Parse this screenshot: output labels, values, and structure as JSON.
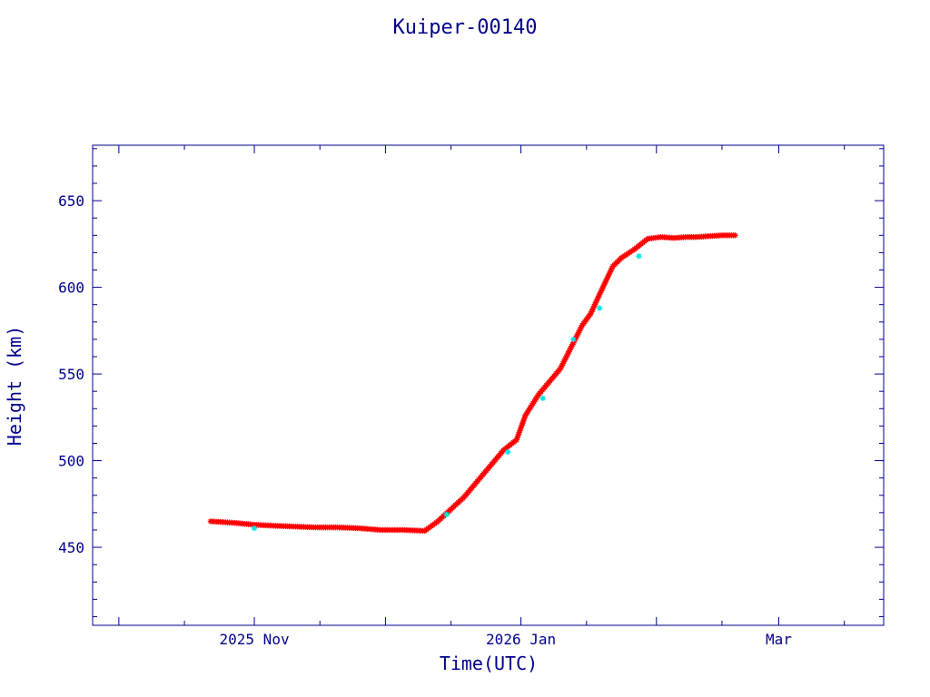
{
  "chart_data": {
    "type": "scatter",
    "title": "Kuiper-00140",
    "xlabel": "Time(UTC)",
    "ylabel": "Height (km)",
    "xlim": [
      "2025-09-25",
      "2026-03-25"
    ],
    "ylim": [
      405,
      682
    ],
    "x_ticks": [
      {
        "date": "2025-11-01",
        "label": "2025 Nov"
      },
      {
        "date": "2026-01-01",
        "label": "2026 Jan"
      },
      {
        "date": "2026-03-01",
        "label": "Mar"
      }
    ],
    "y_ticks": [
      450,
      500,
      550,
      600,
      650
    ],
    "grid": false,
    "colors": {
      "axes": "#00008b",
      "text": "#00008b",
      "primary_marker": "#ff0000",
      "secondary_marker": "#00e5e5"
    },
    "series": [
      {
        "marker": "asterisk",
        "color": "#ff0000",
        "x": [
          "2025-10-22",
          "2025-10-25",
          "2025-10-28",
          "2025-11-01",
          "2025-11-05",
          "2025-11-10",
          "2025-11-15",
          "2025-11-20",
          "2025-11-25",
          "2025-11-30",
          "2025-12-05",
          "2025-12-10",
          "2025-12-13",
          "2025-12-16",
          "2025-12-19",
          "2025-12-22",
          "2025-12-25",
          "2025-12-28",
          "2025-12-31",
          "2026-01-02",
          "2026-01-05",
          "2026-01-08",
          "2026-01-10",
          "2026-01-13",
          "2026-01-15",
          "2026-01-17",
          "2026-01-19",
          "2026-01-22",
          "2026-01-24",
          "2026-01-27",
          "2026-01-30",
          "2026-02-02",
          "2026-02-05",
          "2026-02-08",
          "2026-02-10",
          "2026-02-13",
          "2026-02-16",
          "2026-02-19"
        ],
        "y": [
          465,
          464.5,
          464,
          463,
          462.5,
          462,
          461.5,
          461.5,
          461,
          460,
          460,
          459.5,
          465,
          472,
          479,
          488,
          497,
          506,
          512,
          526,
          538,
          547,
          553,
          568,
          578,
          585,
          596,
          612,
          617,
          622,
          628,
          629,
          628.5,
          629,
          629,
          629.5,
          630,
          630
        ]
      },
      {
        "marker": "asterisk",
        "color": "#00e5e5",
        "x": [
          "2025-11-01",
          "2025-12-15",
          "2025-12-29",
          "2026-01-06",
          "2026-01-13",
          "2026-01-19",
          "2026-01-28"
        ],
        "y": [
          461,
          469,
          505,
          536,
          570,
          588,
          618
        ]
      }
    ]
  }
}
